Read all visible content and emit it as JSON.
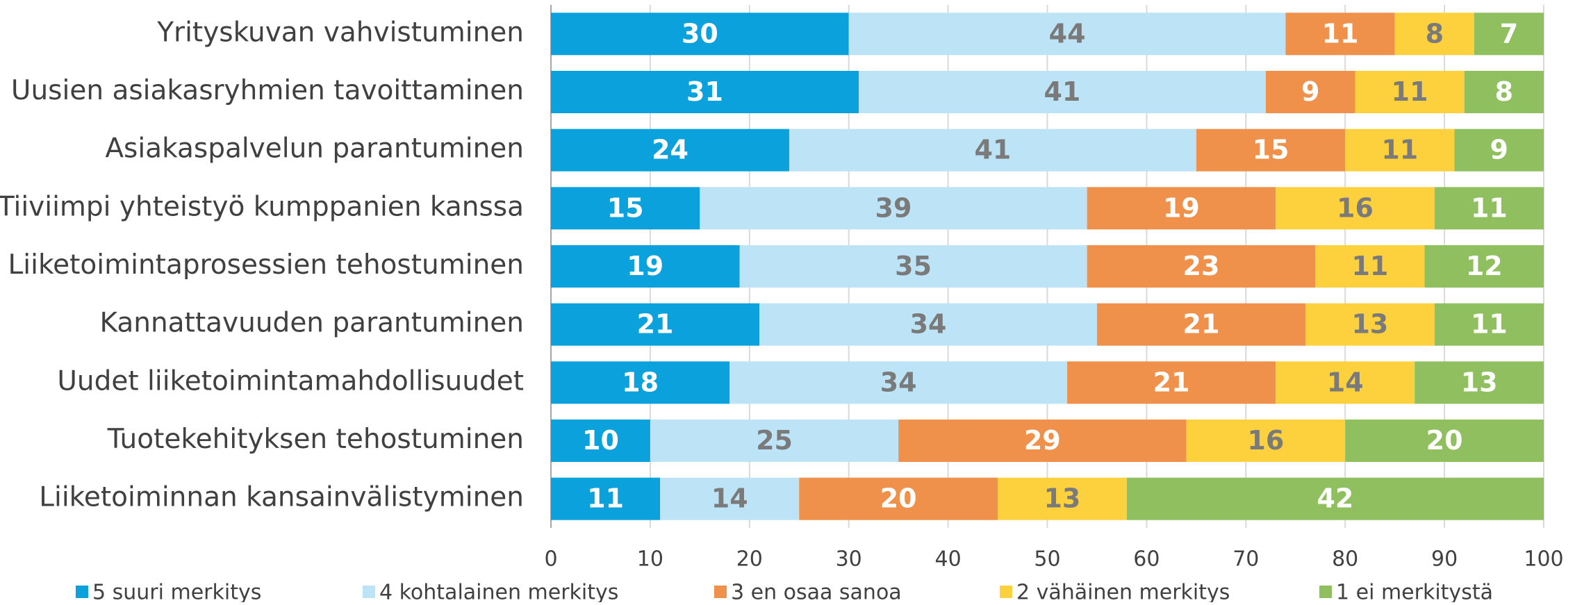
{
  "chart_data": {
    "type": "stacked_barh",
    "categories": [
      "Yrityskuvan vahvistuminen",
      "Uusien asiakasryhmien tavoittaminen",
      "Asiakaspalvelun parantuminen",
      "Tiiviimpi yhteistyö kumppanien kanssa",
      "Liiketoimintaprosessien tehostuminen",
      "Kannattavuuden parantuminen",
      "Uudet liiketoimintamahdollisuudet",
      "Tuotekehityksen tehostuminen",
      "Liiketoiminnan kansainvälistyminen"
    ],
    "series": [
      {
        "name": "5 suuri merkitys",
        "color": "#0aa1dc",
        "label_color": "#ffffff",
        "values": [
          30,
          31,
          24,
          15,
          19,
          21,
          18,
          10,
          11
        ]
      },
      {
        "name": "4 kohtalainen merkitys",
        "color": "#bde3f6",
        "label_color": "#7a7a7a",
        "values": [
          44,
          41,
          41,
          39,
          35,
          34,
          34,
          25,
          14
        ]
      },
      {
        "name": "3 en osaa sanoa",
        "color": "#f0914b",
        "label_color": "#ffffff",
        "values": [
          11,
          9,
          15,
          19,
          23,
          21,
          21,
          29,
          20
        ]
      },
      {
        "name": "2 vähäinen merkitys",
        "color": "#fdd13d",
        "label_color": "#7a7a7a",
        "values": [
          8,
          11,
          11,
          16,
          11,
          13,
          14,
          16,
          13
        ]
      },
      {
        "name": "1 ei merkitystä",
        "color": "#8fbf5f",
        "label_color": "#ffffff",
        "values": [
          7,
          8,
          9,
          11,
          12,
          11,
          13,
          20,
          42
        ]
      }
    ],
    "xlim": [
      0,
      100
    ],
    "xticks": [
      0,
      10,
      20,
      30,
      40,
      50,
      60,
      70,
      80,
      90,
      100
    ],
    "grid": true,
    "legend": "bottom"
  }
}
